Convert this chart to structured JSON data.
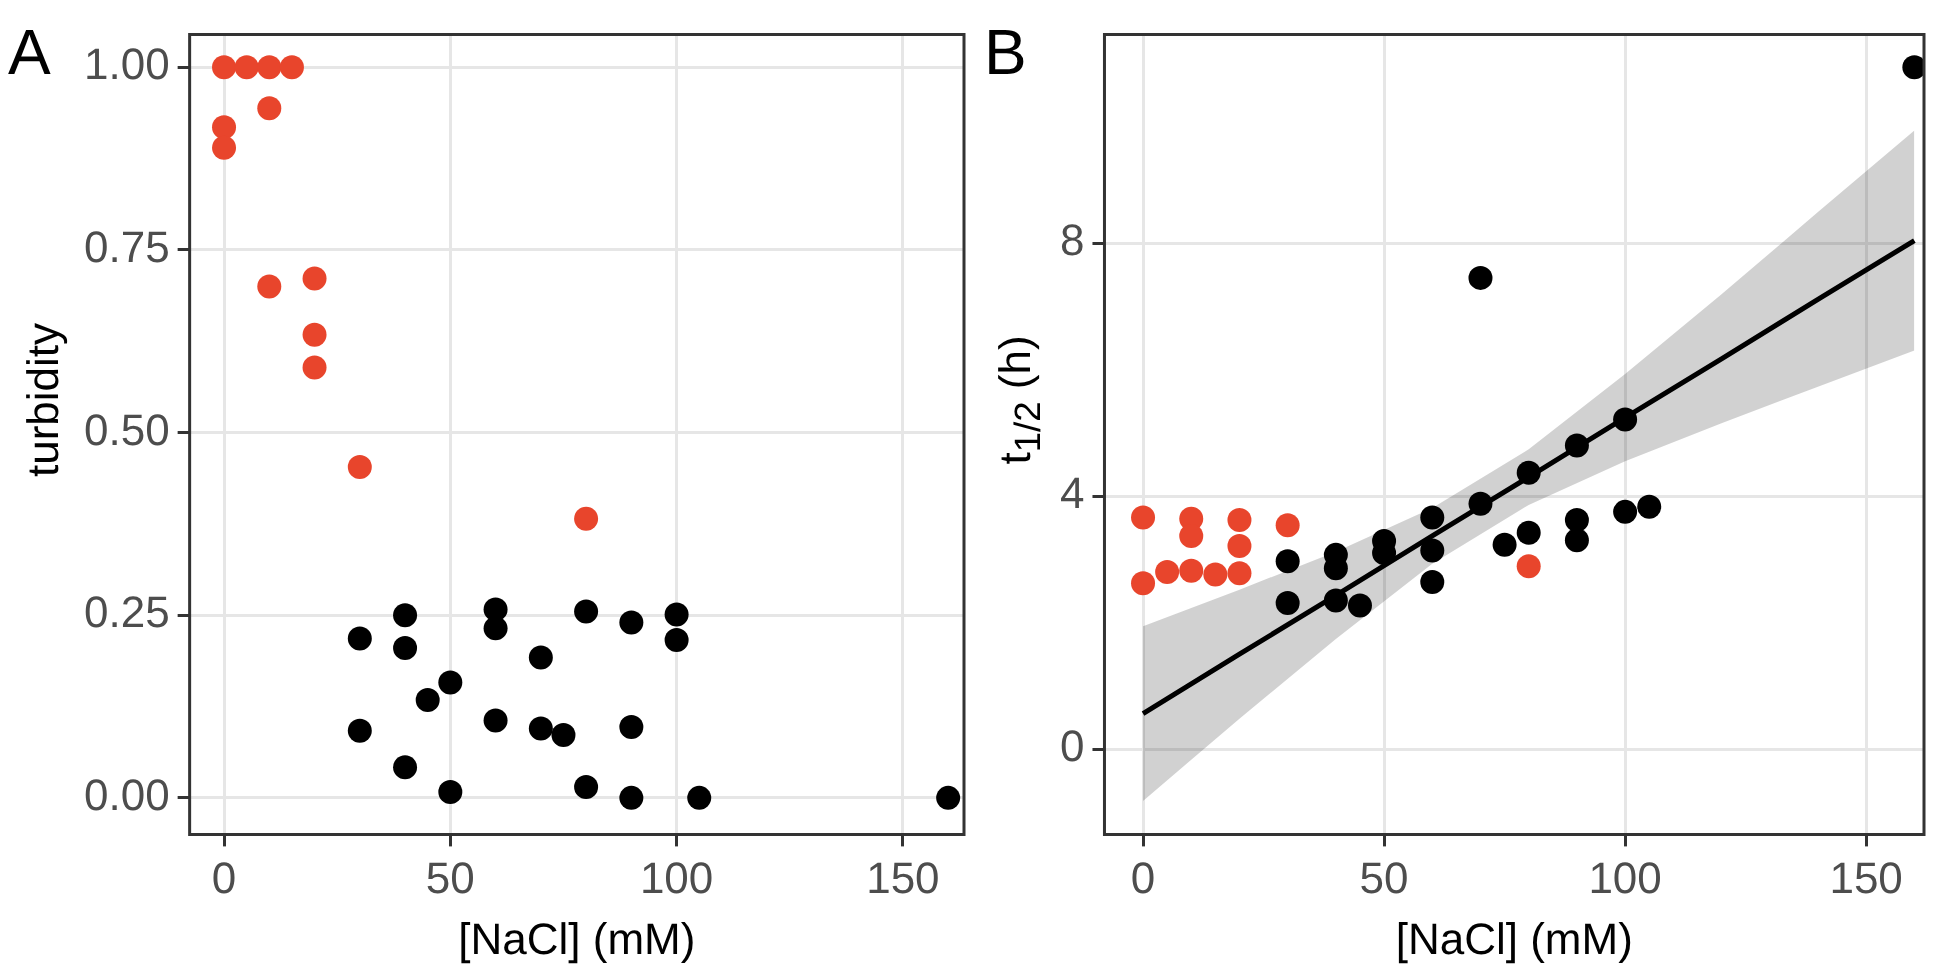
{
  "chart_data": [
    {
      "type": "scatter",
      "title": "A",
      "xlabel": "[NaCl] (mM)",
      "ylabel": "turbidity",
      "xlim": [
        -7.6,
        163.5
      ],
      "ylim": [
        -0.05,
        1.045
      ],
      "xticks": [
        0,
        50,
        100,
        150
      ],
      "yticks": [
        {
          "value": 0,
          "label": "0.00"
        },
        {
          "value": 0.25,
          "label": "0.25"
        },
        {
          "value": 0.5,
          "label": "0.50"
        },
        {
          "value": 0.75,
          "label": "0.75"
        },
        {
          "value": 1,
          "label": "1.00"
        }
      ],
      "grid": true,
      "marker": "circle",
      "series": [
        {
          "color": "#e8452c",
          "x": [
            0,
            5,
            10,
            15,
            10,
            0,
            0,
            10,
            20,
            20,
            20,
            30,
            80
          ],
          "values": [
            1.0,
            1.0,
            1.0,
            1.0,
            0.944,
            0.918,
            0.89,
            0.7,
            0.711,
            0.634,
            0.589,
            0.453,
            0.382
          ]
        },
        {
          "color": "#000000",
          "x": [
            30,
            30,
            40,
            40,
            40,
            45,
            50,
            50,
            60,
            60,
            60,
            70,
            70,
            75,
            80,
            80,
            90,
            90,
            90,
            100,
            100,
            105,
            160
          ],
          "values": [
            0.218,
            0.092,
            0.25,
            0.205,
            0.042,
            0.134,
            0.158,
            0.008,
            0.258,
            0.232,
            0.106,
            0.192,
            0.095,
            0.086,
            0.255,
            0.015,
            0.24,
            0.097,
            0.0,
            0.251,
            0.216,
            0.0,
            0.0
          ]
        }
      ]
    },
    {
      "type": "scatter",
      "title": "B",
      "xlabel": "[NaCl] (mM)",
      "ylabel": "t$_{1/2}$ (h)",
      "xlim": [
        -8,
        162
      ],
      "ylim": [
        -1.35,
        11.3
      ],
      "xticks": [
        0,
        50,
        100,
        150
      ],
      "yticks": [
        0,
        4,
        8
      ],
      "grid": true,
      "marker": "circle",
      "series": [
        {
          "color": "#e8452c",
          "x": [
            0,
            0,
            5,
            10,
            10,
            10,
            15,
            20,
            20,
            20,
            30,
            80
          ],
          "values": [
            3.66,
            2.62,
            2.8,
            3.64,
            3.37,
            2.82,
            2.76,
            3.62,
            3.21,
            2.78,
            3.54,
            2.89
          ]
        },
        {
          "color": "#000000",
          "x": [
            30,
            30,
            40,
            40,
            40,
            45,
            50,
            50,
            60,
            60,
            60,
            70,
            70,
            75,
            80,
            80,
            90,
            90,
            90,
            100,
            100,
            105,
            160
          ],
          "values": [
            2.97,
            2.31,
            3.07,
            2.86,
            2.35,
            2.27,
            3.29,
            3.1,
            3.66,
            3.14,
            2.64,
            7.45,
            3.88,
            3.23,
            4.37,
            3.42,
            4.8,
            3.62,
            3.3,
            5.21,
            3.75,
            3.83,
            10.78
          ]
        },
        {
          "type": "line",
          "color": "#000000",
          "marker": "none",
          "x": [
            0,
            20,
            40,
            60,
            80,
            100,
            120,
            140,
            160
          ],
          "values": [
            0.56,
            1.5,
            2.43,
            3.37,
            4.3,
            5.24,
            6.17,
            7.11,
            8.04
          ],
          "lower": [
            -0.82,
            0.48,
            1.74,
            2.93,
            3.86,
            4.55,
            5.15,
            5.73,
            6.3
          ],
          "upper": [
            1.94,
            2.52,
            3.12,
            3.81,
            4.74,
            5.93,
            7.19,
            8.49,
            9.78
          ]
        }
      ]
    }
  ]
}
